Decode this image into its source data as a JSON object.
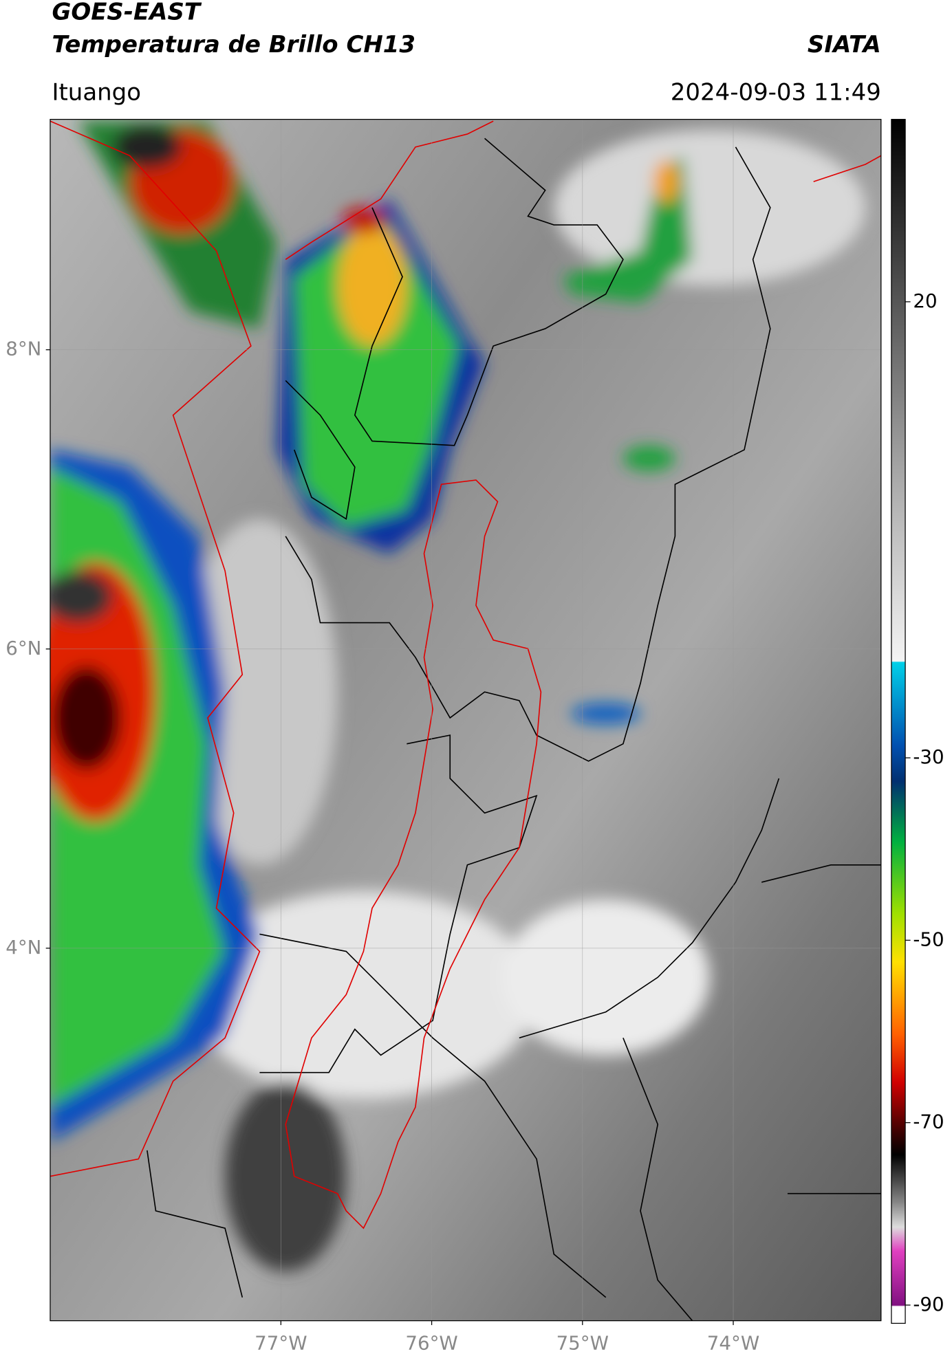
{
  "header": {
    "satellite": "GOES-EAST",
    "product": "Temperatura de Brillo CH13",
    "org": "SIATA",
    "location": "Ituango",
    "datetime": "2024-09-03 11:49"
  },
  "map": {
    "xlim": [
      -78.53,
      -73.02
    ],
    "ylim": [
      1.51,
      9.54
    ],
    "lat_ticks": [
      {
        "value": 8,
        "label": "8°N"
      },
      {
        "value": 6,
        "label": "6°N"
      },
      {
        "value": 4,
        "label": "4°N"
      }
    ],
    "lon_ticks": [
      {
        "value": -77,
        "label": "77°W"
      },
      {
        "value": -76,
        "label": "76°W"
      },
      {
        "value": -75,
        "label": "75°W"
      },
      {
        "value": -74,
        "label": "74°W"
      }
    ],
    "colorbar": {
      "range": [
        -92,
        40
      ],
      "ticks": [
        20,
        -30,
        -50,
        -70,
        -90
      ]
    }
  }
}
